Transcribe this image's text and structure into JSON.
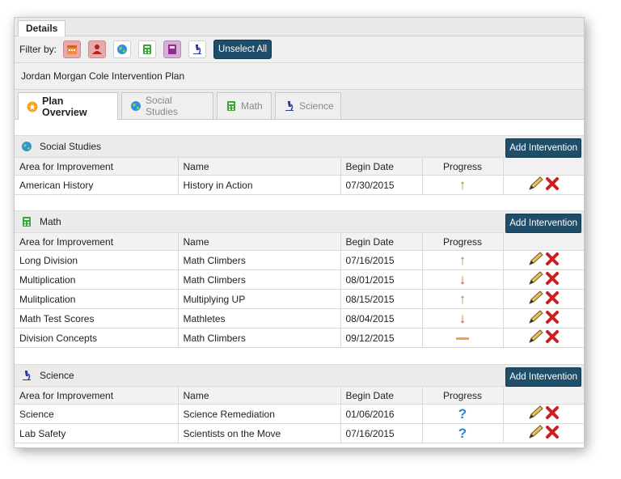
{
  "header": {
    "details_tab": "Details"
  },
  "filter": {
    "label": "Filter by:",
    "unselect_label": "Unselect All"
  },
  "plan": {
    "title": "Jordan Morgan Cole Intervention Plan"
  },
  "tabs": [
    {
      "label": "Plan Overview",
      "icon": "star-icon",
      "active": true
    },
    {
      "label": "Social Studies",
      "icon": "globe-icon",
      "active": false
    },
    {
      "label": "Math",
      "icon": "calculator-icon",
      "active": false
    },
    {
      "label": "Science",
      "icon": "microscope-icon",
      "active": false
    }
  ],
  "columns": {
    "area": "Area for Improvement",
    "name": "Name",
    "begin": "Begin Date",
    "progress": "Progress"
  },
  "add_label": "Add Intervention",
  "sections": [
    {
      "title": "Social Studies",
      "icon": "globe-icon",
      "rows": [
        {
          "area": "American History",
          "name": "History in Action",
          "begin": "07/30/2015",
          "progress": "up"
        }
      ]
    },
    {
      "title": "Math",
      "icon": "calculator-icon",
      "rows": [
        {
          "area": "Long Division",
          "name": "Math Climbers",
          "begin": "07/16/2015",
          "progress": "up"
        },
        {
          "area": "Multiplication",
          "name": "Math Climbers",
          "begin": "08/01/2015",
          "progress": "down"
        },
        {
          "area": "Mulitplication",
          "name": "Multiplying UP",
          "begin": "08/15/2015",
          "progress": "up"
        },
        {
          "area": "Math Test Scores",
          "name": "Mathletes",
          "begin": "08/04/2015",
          "progress": "down"
        },
        {
          "area": "Division Concepts",
          "name": "Math Climbers",
          "begin": "09/12/2015",
          "progress": "flat"
        }
      ]
    },
    {
      "title": "Science",
      "icon": "microscope-icon",
      "rows": [
        {
          "area": "Science",
          "name": "Science Remediation",
          "begin": "01/06/2016",
          "progress": "unknown"
        },
        {
          "area": "Lab Safety",
          "name": "Scientists on the Move",
          "begin": "07/16/2015",
          "progress": "unknown"
        }
      ]
    }
  ],
  "colors": {
    "accent": "#1f4e6b",
    "up": "#6aa82f",
    "down": "#e04a2a",
    "flat": "#f0a24a",
    "unknown": "#2f7fd8"
  }
}
